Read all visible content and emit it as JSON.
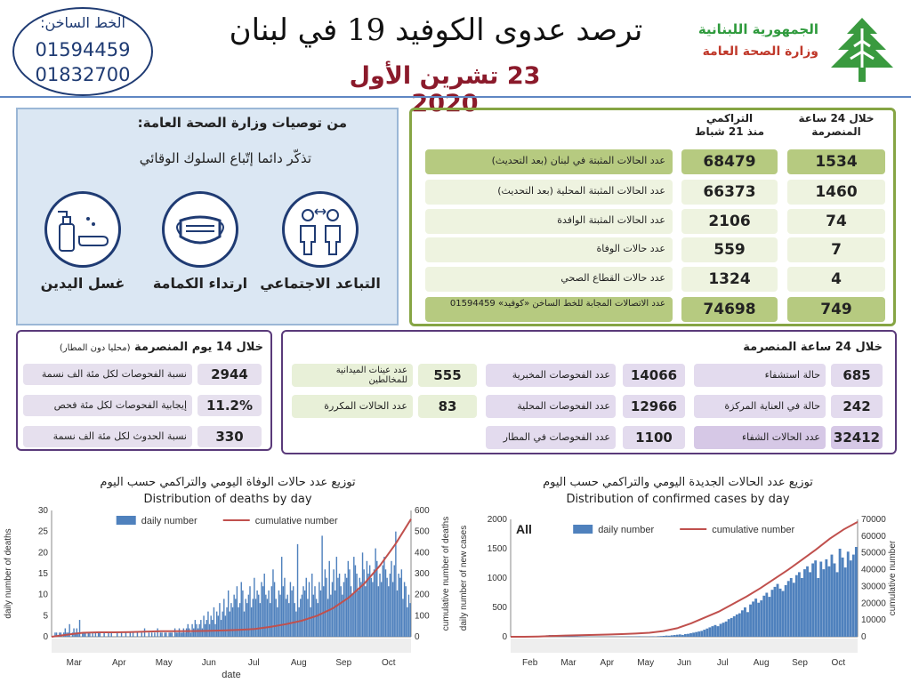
{
  "header": {
    "hotline_label": "الخط الساخن:",
    "hotline_1": "01594459",
    "hotline_2": "01832700",
    "title": "ترصد عدوى الكوفيد 19 في لبنان",
    "date": "23 تشرين الأول 2020",
    "republic": "الجمهورية اللبنانية",
    "ministry": "وزارة الصحة العامة",
    "colors": {
      "brand_green": "#2e9a3c",
      "brand_red": "#c0392b",
      "date_color": "#8b1a2b"
    }
  },
  "recommendations": {
    "title": "من توصيات وزارة الصحة العامة:",
    "subtitle": "تذكّر دائما إتّباع السلوك الوقائي",
    "items": [
      {
        "label": "التباعد الاجتماعي",
        "icon": "social-distance-icon"
      },
      {
        "label": "ارتداء الكمامة",
        "icon": "face-mask-icon"
      },
      {
        "label": "غسل اليدين",
        "icon": "hand-wash-icon"
      }
    ]
  },
  "summary": {
    "col_24h": "خلال 24 ساعة المنصرمة",
    "col_cum_1": "التراكمي",
    "col_cum_2": "منذ 21 شباط",
    "rows": [
      {
        "label": "عدد الحالات المثبتة في لبنان (بعد التحديث)",
        "cumulative": "68479",
        "last24": "1534"
      },
      {
        "label": "عدد الحالات المثبتة المحلية (بعد التحديث)",
        "cumulative": "66373",
        "last24": "1460"
      },
      {
        "label": "عدد الحالات المثبتة الوافدة",
        "cumulative": "2106",
        "last24": "74"
      },
      {
        "label": "عدد حالات الوفاة",
        "cumulative": "559",
        "last24": "7"
      },
      {
        "label": "عدد حالات القطاع الصحي",
        "cumulative": "1324",
        "last24": "4"
      },
      {
        "label": "عدد الاتصالات المجابة للخط الساخن «كوفيد» 01594459",
        "cumulative": "74698",
        "last24": "749"
      }
    ]
  },
  "fourteen_days": {
    "title": "خلال 14 يوم المنصرمة",
    "note": "(محليا دون المطار)",
    "rows": [
      {
        "label": "نسبة الفحوصات لكل مئة الف نسمة",
        "value": "2944"
      },
      {
        "label": "إيجابية الفحوصات لكل مئة فحص",
        "value": "11.2%"
      },
      {
        "label": "نسبة الحدوث لكل مئة الف نسمة",
        "value": "330"
      }
    ]
  },
  "last24": {
    "title": "خلال 24 ساعة المنصرمة",
    "col1": [
      {
        "label": "حالة استشفاء",
        "value": "685"
      },
      {
        "label": "حالة في العناية المركزة",
        "value": "242"
      },
      {
        "label": "عدد الحالات الشفاء",
        "value": "32412"
      }
    ],
    "col2": [
      {
        "label": "عدد الفحوصات المخبرية",
        "value": "14066"
      },
      {
        "label": "عدد الفحوصات المحلية",
        "value": "12966"
      },
      {
        "label": "عدد الفحوصات في المطار",
        "value": "1100"
      }
    ],
    "col3": [
      {
        "label": "عدد عينات الميدانية للمخالطين",
        "value": "555"
      },
      {
        "label": "عدد الحالات المكررة",
        "value": "83"
      }
    ]
  },
  "chart_data": [
    {
      "type": "bar",
      "title_ar": "توزيع عدد حالات الوفاة اليومي والتراكمي حسب اليوم",
      "title": "Distribution of deaths by day",
      "xlabel": "date",
      "ylabel": "daily number of deaths",
      "y2label": "cumulative number of deaths",
      "ylim": [
        0,
        30
      ],
      "y2lim": [
        0,
        600
      ],
      "y_ticks": [
        "0",
        "5",
        "10",
        "15",
        "20",
        "25",
        "30"
      ],
      "y2_ticks": [
        "0",
        "100",
        "200",
        "300",
        "400",
        "500",
        "600"
      ],
      "months": [
        "Mar",
        "Apr",
        "May",
        "Jun",
        "Jul",
        "Aug",
        "Sep",
        "Oct"
      ],
      "legend": [
        "daily number",
        "cumulative number"
      ],
      "series": [
        {
          "name": "daily number",
          "color": "#4f81bd",
          "values": [
            0,
            0,
            1,
            1,
            0,
            1,
            1,
            0,
            1,
            2,
            1,
            1,
            3,
            0,
            1,
            2,
            1,
            2,
            1,
            4,
            0,
            1,
            1,
            1,
            0,
            1,
            1,
            0,
            1,
            0,
            1,
            0,
            1,
            1,
            0,
            0,
            1,
            0,
            0,
            1,
            0,
            1,
            0,
            0,
            0,
            1,
            0,
            0,
            1,
            0,
            0,
            1,
            0,
            0,
            1,
            0,
            1,
            0,
            0,
            1,
            0,
            0,
            1,
            0,
            2,
            0,
            0,
            1,
            0,
            1,
            0,
            1,
            0,
            2,
            0,
            1,
            1,
            0,
            1,
            1,
            0,
            1,
            1,
            1,
            0,
            2,
            1,
            1,
            2,
            1,
            1,
            2,
            1,
            2,
            3,
            2,
            1,
            3,
            2,
            4,
            3,
            2,
            3,
            4,
            2,
            5,
            3,
            4,
            6,
            3,
            5,
            4,
            7,
            3,
            6,
            5,
            8,
            4,
            6,
            9,
            5,
            7,
            11,
            6,
            8,
            7,
            10,
            9,
            12,
            7,
            8,
            13,
            11,
            6,
            9,
            8,
            10,
            12,
            7,
            9,
            14,
            9,
            11,
            10,
            8,
            13,
            12,
            15,
            10,
            9,
            11,
            8,
            12,
            16,
            13,
            9,
            7,
            11,
            10,
            19,
            12,
            14,
            9,
            10,
            8,
            13,
            11,
            12,
            8,
            6,
            22,
            7,
            9,
            10,
            12,
            11,
            14,
            9,
            13,
            7,
            15,
            10,
            12,
            9,
            8,
            13,
            11,
            24,
            12,
            16,
            14,
            9,
            18,
            10,
            13,
            16,
            11,
            19,
            14,
            15,
            12,
            10,
            13,
            15,
            14,
            18,
            16,
            12,
            10,
            19,
            17,
            15,
            11,
            14,
            13,
            20,
            16,
            12,
            18,
            15,
            17,
            14,
            13,
            16,
            21,
            18,
            12,
            15,
            13,
            17,
            19,
            16,
            14,
            12,
            15,
            18,
            13,
            17,
            25,
            11,
            15,
            14,
            16,
            9,
            13,
            12,
            7,
            10,
            8
          ]
        },
        {
          "name": "cumulative number",
          "color": "#c0504d",
          "values": [
            0,
            10,
            19,
            21,
            21,
            22,
            24,
            26,
            26,
            27,
            28,
            30,
            33,
            37,
            47,
            60,
            76,
            100,
            135,
            185,
            252,
            337,
            440,
            559
          ]
        }
      ]
    },
    {
      "type": "bar",
      "title_ar": "توزيع عدد الحالات الجديدة اليومي والتراكمي حسب اليوم",
      "title": "Distribution of confirmed cases by day",
      "xlabel": "",
      "ylabel": "daily number of new cases",
      "y2label": "cumulative number",
      "badge": "All",
      "ylim": [
        0,
        2000
      ],
      "y2lim": [
        0,
        70000
      ],
      "y_ticks": [
        "0",
        "500",
        "1000",
        "1500",
        "2000"
      ],
      "y2_ticks": [
        "0",
        "10000",
        "20000",
        "30000",
        "40000",
        "50000",
        "60000",
        "70000"
      ],
      "months": [
        "Feb",
        "Mar",
        "Apr",
        "May",
        "Jun",
        "Jul",
        "Aug",
        "Sep",
        "Oct"
      ],
      "legend": [
        "daily number",
        "cumulative number"
      ],
      "series": [
        {
          "name": "daily number",
          "color": "#4f81bd",
          "values": [
            0,
            0,
            0,
            1,
            0,
            1,
            2,
            3,
            5,
            8,
            12,
            16,
            20,
            25,
            30,
            30,
            28,
            26,
            30,
            24,
            22,
            18,
            15,
            12,
            10,
            8,
            6,
            5,
            4,
            3,
            3,
            2,
            4,
            3,
            2,
            2,
            3,
            4,
            3,
            2,
            2,
            3,
            4,
            6,
            5,
            4,
            6,
            8,
            5,
            4,
            3,
            6,
            8,
            4,
            10,
            12,
            15,
            20,
            18,
            25,
            30,
            35,
            40,
            32,
            45,
            50,
            60,
            70,
            80,
            90,
            100,
            120,
            140,
            160,
            180,
            200,
            180,
            220,
            240,
            260,
            300,
            320,
            350,
            380,
            400,
            450,
            500,
            420,
            550,
            600,
            650,
            580,
            620,
            700,
            750,
            680,
            800,
            850,
            900,
            820,
            780,
            880,
            950,
            1000,
            920,
            1050,
            1100,
            1000,
            1150,
            1200,
            1100,
            1250,
            1300,
            1000,
            1280,
            1150,
            1320,
            1200,
            1400,
            1250,
            1100,
            1500,
            1350,
            1180,
            1450,
            1300,
            1400,
            1530
          ]
        },
        {
          "name": "cumulative number",
          "color": "#c0504d",
          "values": [
            0,
            10,
            150,
            500,
            720,
            900,
            1100,
            1300,
            1600,
            1900,
            2400,
            3400,
            5100,
            8000,
            11500,
            15000,
            19500,
            24000,
            29000,
            34500,
            40000,
            46000,
            52000,
            58500,
            64000,
            68479
          ]
        }
      ]
    }
  ]
}
